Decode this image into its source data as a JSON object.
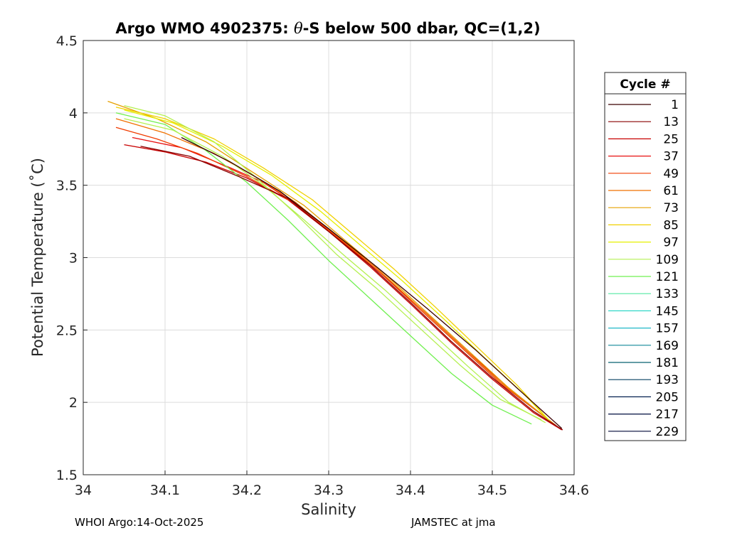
{
  "chart_data": {
    "type": "line",
    "title_prefix": "Argo WMO 4902375: ",
    "title_theta": "θ",
    "title_suffix": "-S below 500 dbar,  QC=(1,2)",
    "xlabel": "Salinity",
    "ylabel": "Potential Temperature (˚C)",
    "xlim": [
      34.0,
      34.6
    ],
    "ylim": [
      1.5,
      4.5
    ],
    "xticks": [
      34.0,
      34.1,
      34.2,
      34.3,
      34.4,
      34.5,
      34.6
    ],
    "xtick_labels": [
      "34",
      "34.1",
      "34.2",
      "34.3",
      "34.4",
      "34.5",
      "34.6"
    ],
    "yticks": [
      1.5,
      2.0,
      2.5,
      3.0,
      3.5,
      4.0,
      4.5
    ],
    "ytick_labels": [
      "1.5",
      "2",
      "2.5",
      "3",
      "3.5",
      "4",
      "4.5"
    ],
    "grid": true,
    "legend": {
      "title": "Cycle #",
      "placement": "outside-right",
      "entries": [
        {
          "label": "1",
          "color": "#3a0000"
        },
        {
          "label": "13",
          "color": "#8a0000"
        },
        {
          "label": "25",
          "color": "#c80000"
        },
        {
          "label": "37",
          "color": "#e81010"
        },
        {
          "label": "49",
          "color": "#f03c00"
        },
        {
          "label": "61",
          "color": "#f07000"
        },
        {
          "label": "73",
          "color": "#e6a000"
        },
        {
          "label": "85",
          "color": "#f0d000"
        },
        {
          "label": "97",
          "color": "#e6f000"
        },
        {
          "label": "109",
          "color": "#b4f050"
        },
        {
          "label": "121",
          "color": "#70f050"
        },
        {
          "label": "133",
          "color": "#50e8a0"
        },
        {
          "label": "145",
          "color": "#30d8c8"
        },
        {
          "label": "157",
          "color": "#20b8c8"
        },
        {
          "label": "169",
          "color": "#108898"
        },
        {
          "label": "181",
          "color": "#086070"
        },
        {
          "label": "193",
          "color": "#064060"
        },
        {
          "label": "205",
          "color": "#042050"
        },
        {
          "label": "217",
          "color": "#021040"
        },
        {
          "label": "229",
          "color": "#000838"
        }
      ]
    },
    "series": [
      {
        "color": "#c80000",
        "x": [
          34.05,
          34.1,
          34.15,
          34.2,
          34.25,
          34.3,
          34.35,
          34.4,
          34.45,
          34.5,
          34.55,
          34.585
        ],
        "y": [
          3.78,
          3.73,
          3.66,
          3.55,
          3.4,
          3.18,
          2.94,
          2.68,
          2.41,
          2.16,
          1.93,
          1.81
        ]
      },
      {
        "color": "#e81010",
        "x": [
          34.06,
          34.12,
          34.18,
          34.22,
          34.27,
          34.32,
          34.37,
          34.42,
          34.47,
          34.52,
          34.582
        ],
        "y": [
          3.83,
          3.76,
          3.62,
          3.52,
          3.33,
          3.1,
          2.86,
          2.61,
          2.35,
          2.1,
          1.82
        ]
      },
      {
        "color": "#f03c00",
        "x": [
          34.04,
          34.09,
          34.14,
          34.2,
          34.26,
          34.31,
          34.36,
          34.41,
          34.46,
          34.51,
          34.58
        ],
        "y": [
          3.9,
          3.82,
          3.72,
          3.56,
          3.37,
          3.14,
          2.91,
          2.65,
          2.39,
          2.13,
          1.83
        ]
      },
      {
        "color": "#f07000",
        "x": [
          34.04,
          34.1,
          34.16,
          34.21,
          34.26,
          34.31,
          34.36,
          34.41,
          34.46,
          34.51,
          34.578
        ],
        "y": [
          3.96,
          3.86,
          3.72,
          3.56,
          3.38,
          3.15,
          2.92,
          2.66,
          2.4,
          2.14,
          1.84
        ]
      },
      {
        "color": "#e6a000",
        "x": [
          34.03,
          34.09,
          34.15,
          34.21,
          34.27,
          34.32,
          34.37,
          34.42,
          34.47,
          34.52,
          34.575
        ],
        "y": [
          4.08,
          3.96,
          3.8,
          3.58,
          3.36,
          3.12,
          2.88,
          2.62,
          2.36,
          2.1,
          1.85
        ]
      },
      {
        "color": "#f0d000",
        "x": [
          34.04,
          34.1,
          34.16,
          34.22,
          34.28,
          34.33,
          34.38,
          34.43,
          34.48,
          34.53,
          34.572
        ],
        "y": [
          4.04,
          3.96,
          3.82,
          3.62,
          3.4,
          3.16,
          2.92,
          2.66,
          2.39,
          2.12,
          1.86
        ]
      },
      {
        "color": "#e6f000",
        "x": [
          34.05,
          34.11,
          34.17,
          34.23,
          34.29,
          34.34,
          34.39,
          34.44,
          34.49,
          34.54,
          34.57
        ],
        "y": [
          4.02,
          3.93,
          3.77,
          3.57,
          3.32,
          3.08,
          2.84,
          2.58,
          2.31,
          2.05,
          1.87
        ]
      },
      {
        "color": "#b4f050",
        "x": [
          34.05,
          34.1,
          34.16,
          34.21,
          34.26,
          34.31,
          34.36,
          34.41,
          34.46,
          34.51,
          34.56
        ],
        "y": [
          4.05,
          3.98,
          3.8,
          3.56,
          3.3,
          3.02,
          2.78,
          2.52,
          2.26,
          2.02,
          1.88
        ]
      },
      {
        "color": "#70f050",
        "x": [
          34.04,
          34.1,
          34.15,
          34.2,
          34.25,
          34.3,
          34.35,
          34.4,
          34.45,
          34.5,
          34.548
        ],
        "y": [
          4.0,
          3.92,
          3.74,
          3.52,
          3.26,
          2.98,
          2.72,
          2.46,
          2.2,
          1.98,
          1.85
        ]
      },
      {
        "color": "#b4f050",
        "x": [
          34.05,
          34.11,
          34.17,
          34.22,
          34.27,
          34.32,
          34.37,
          34.42,
          34.47,
          34.52,
          34.565
        ],
        "y": [
          3.96,
          3.88,
          3.7,
          3.5,
          3.26,
          3.01,
          2.77,
          2.51,
          2.25,
          2.0,
          1.86
        ]
      },
      {
        "color": "#3a0000",
        "x": [
          34.12,
          34.18,
          34.24,
          34.3,
          34.36,
          34.42,
          34.48,
          34.53,
          34.585
        ],
        "y": [
          3.83,
          3.66,
          3.46,
          3.2,
          2.93,
          2.65,
          2.36,
          2.1,
          1.82
        ]
      },
      {
        "color": "#8a0000",
        "x": [
          34.07,
          34.13,
          34.19,
          34.25,
          34.3,
          34.35,
          34.4,
          34.45,
          34.5,
          34.55,
          34.586
        ],
        "y": [
          3.77,
          3.7,
          3.56,
          3.41,
          3.18,
          2.95,
          2.69,
          2.42,
          2.17,
          1.94,
          1.81
        ]
      }
    ]
  },
  "footer": {
    "left": "WHOI Argo:14-Oct-2025",
    "right": "JAMSTEC at jma"
  }
}
